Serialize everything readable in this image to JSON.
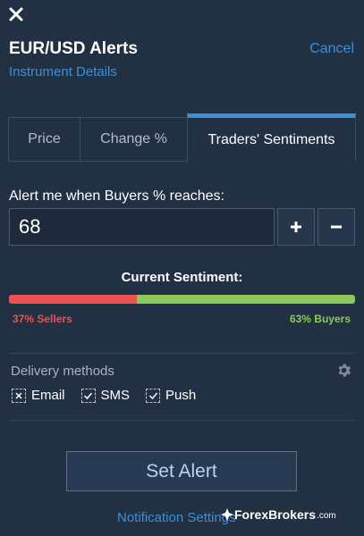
{
  "header": {
    "title": "EUR/USD Alerts",
    "cancel_label": "Cancel",
    "instrument_link": "Instrument Details",
    "close_icon": "close-icon"
  },
  "tabs": [
    {
      "label": "Price",
      "active": false
    },
    {
      "label": "Change %",
      "active": false
    },
    {
      "label": "Traders' Sentiments",
      "active": true
    }
  ],
  "alert": {
    "label": "Alert me when Buyers % reaches:",
    "value": "68",
    "plus_label": "+",
    "minus_label": "−"
  },
  "sentiment": {
    "heading": "Current Sentiment:",
    "sellers_label": "37% Sellers",
    "buyers_label": "63% Buyers",
    "sellers_percent": 37,
    "buyers_percent": 63,
    "sellers_color": "#ea5353",
    "buyers_color": "#8cc95a"
  },
  "delivery": {
    "heading": "Delivery methods",
    "settings_icon": "gear-icon",
    "methods": [
      {
        "label": "Email",
        "checked": true
      },
      {
        "label": "SMS",
        "checked": true
      },
      {
        "label": "Push",
        "checked": true
      }
    ]
  },
  "actions": {
    "set_alert_label": "Set Alert",
    "notification_settings_label": "Notification Settings"
  },
  "watermark": {
    "text": "ForexBrokers",
    "suffix": ".com"
  },
  "colors": {
    "background": "#223044",
    "accent": "#3d8fd6"
  }
}
